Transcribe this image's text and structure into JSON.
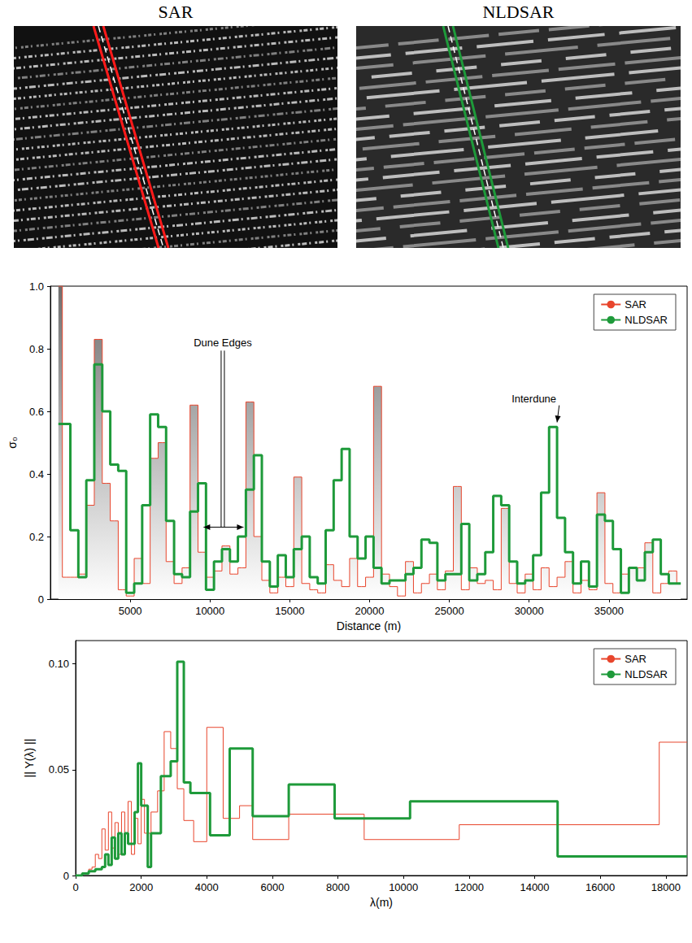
{
  "image_panels": [
    {
      "title": "SAR",
      "color": "#ff1a1a"
    },
    {
      "title": "NLDSAR",
      "color": "#1e9a3a"
    }
  ],
  "chart_data": [
    {
      "type": "line",
      "line_style": "step",
      "xlabel": "Distance (m)",
      "ylabel": "σ₀",
      "xlim": [
        0,
        39900
      ],
      "ylim": [
        0,
        1
      ],
      "xticks": [
        5000,
        10000,
        15000,
        20000,
        25000,
        30000,
        35000
      ],
      "yticks": [
        0,
        0.2,
        0.4,
        0.6,
        0.8,
        {
          "value": 1,
          "label": "1.0"
        }
      ],
      "grid": false,
      "legend": "upper right",
      "x": [
        500,
        1000,
        1500,
        2000,
        2500,
        3000,
        3500,
        4000,
        4500,
        5000,
        5500,
        6000,
        6500,
        7000,
        7500,
        8000,
        8500,
        9000,
        9500,
        10000,
        10500,
        11000,
        11500,
        12000,
        12500,
        13000,
        13500,
        14000,
        14500,
        15000,
        15500,
        16000,
        16500,
        17000,
        17500,
        18000,
        18500,
        19000,
        19500,
        20000,
        20500,
        21000,
        21500,
        22000,
        22500,
        23000,
        23500,
        24000,
        24500,
        25000,
        25500,
        26000,
        26500,
        27000,
        27500,
        28000,
        28500,
        29000,
        29500,
        30000,
        30500,
        31000,
        31500,
        32000,
        32500,
        33000,
        33500,
        34000,
        34500,
        35000,
        35500,
        36000,
        36500,
        37000,
        37500,
        38000,
        38500,
        39000,
        39500
      ],
      "series": [
        {
          "name": "SAR",
          "type": "area",
          "color": "#e8452c",
          "values": [
            1.0,
            0.07,
            0.07,
            0.08,
            0.3,
            0.83,
            0.37,
            0.25,
            0.03,
            0.01,
            0.13,
            0.05,
            0.45,
            0.5,
            0.12,
            0.05,
            0.1,
            0.62,
            0.15,
            0.07,
            0.09,
            0.17,
            0.08,
            0.1,
            0.63,
            0.2,
            0.06,
            0.02,
            0.07,
            0.04,
            0.39,
            0.05,
            0.03,
            0.02,
            0.11,
            0.06,
            0.04,
            0.13,
            0.04,
            0.07,
            0.68,
            0.08,
            0.04,
            0.01,
            0.12,
            0.02,
            0.05,
            0.08,
            0.03,
            0.09,
            0.36,
            0.03,
            0.1,
            0.05,
            0.06,
            0.03,
            0.29,
            0.05,
            0.02,
            0.08,
            0.03,
            0.1,
            0.04,
            0.07,
            0.12,
            0.02,
            0.06,
            0.03,
            0.34,
            0.05,
            0.02,
            0.08,
            0.1,
            0.1,
            0.18,
            0.02,
            0.05,
            0.09,
            0.05
          ]
        },
        {
          "name": "NLDSAR",
          "type": "line",
          "color": "#1e9a3a",
          "values": [
            0.56,
            0.56,
            0.22,
            0.07,
            0.38,
            0.75,
            0.6,
            0.43,
            0.41,
            0.02,
            0.05,
            0.3,
            0.59,
            0.55,
            0.25,
            0.08,
            0.07,
            0.28,
            0.37,
            0.03,
            0.12,
            0.16,
            0.12,
            0.2,
            0.35,
            0.46,
            0.12,
            0.04,
            0.14,
            0.07,
            0.16,
            0.2,
            0.07,
            0.05,
            0.22,
            0.38,
            0.48,
            0.2,
            0.13,
            0.2,
            0.1,
            0.05,
            0.06,
            0.06,
            0.08,
            0.1,
            0.19,
            0.18,
            0.06,
            0.08,
            0.08,
            0.24,
            0.06,
            0.08,
            0.15,
            0.33,
            0.3,
            0.12,
            0.05,
            0.06,
            0.14,
            0.34,
            0.55,
            0.26,
            0.15,
            0.05,
            0.12,
            0.04,
            0.27,
            0.25,
            0.16,
            0.02,
            0.1,
            0.06,
            0.15,
            0.19,
            0.08,
            0.05,
            0.05
          ]
        }
      ],
      "annotations": [
        {
          "text": "Dune Edges",
          "text_at": [
            10800,
            0.82
          ],
          "arrow": [
            [
              9600,
              0.23
            ],
            [
              12100,
              0.23
            ]
          ]
        },
        {
          "text": "Interdune",
          "text_at": [
            30300,
            0.64
          ],
          "arrow": [
            [
              31750,
              0.565
            ]
          ]
        }
      ]
    },
    {
      "type": "line",
      "line_style": "step",
      "xlabel": "λ(m)",
      "ylabel": "|| Y(λ) ||",
      "xlim": [
        0,
        18650
      ],
      "ylim": [
        0,
        0.111
      ],
      "xticks": [
        0,
        2000,
        4000,
        6000,
        8000,
        10000,
        12000,
        14000,
        16000,
        18000
      ],
      "yticks": [
        0,
        0.05,
        {
          "value": 0.1,
          "label": "0.10"
        }
      ],
      "grid": false,
      "legend": "upper right",
      "series": [
        {
          "name": "SAR",
          "type": "line",
          "color": "#e8452c",
          "x": [
            0,
            200,
            400,
            500,
            600,
            700,
            800,
            900,
            1000,
            1100,
            1200,
            1300,
            1400,
            1500,
            1600,
            1700,
            1800,
            1900,
            2000,
            2100,
            2300,
            2500,
            2700,
            2900,
            3100,
            3300,
            3600,
            4000,
            4500,
            5000,
            5400,
            6500,
            8800,
            11700,
            17800,
            18650
          ],
          "values": [
            0,
            0.001,
            0.003,
            0.004,
            0.01,
            0.008,
            0.022,
            0.012,
            0.03,
            0.013,
            0.025,
            0.01,
            0.03,
            0.02,
            0.035,
            0.01,
            0.027,
            0.015,
            0.036,
            0.02,
            0.03,
            0.04,
            0.068,
            0.06,
            0.041,
            0.026,
            0.016,
            0.07,
            0.027,
            0.033,
            0.017,
            0.029,
            0.017,
            0.024,
            0.063,
            0.063
          ]
        },
        {
          "name": "NLDSAR",
          "type": "line",
          "color": "#1e9a3a",
          "x": [
            0,
            200,
            400,
            600,
            800,
            900,
            1000,
            1100,
            1200,
            1300,
            1400,
            1500,
            1600,
            1800,
            1900,
            2000,
            2200,
            2300,
            2600,
            2900,
            3100,
            3300,
            3500,
            4100,
            4700,
            5400,
            6500,
            7900,
            10200,
            14700,
            18650
          ],
          "values": [
            0,
            0.001,
            0.002,
            0.003,
            0.004,
            0.01,
            0.005,
            0.018,
            0.008,
            0.02,
            0.01,
            0.02,
            0.015,
            0.03,
            0.053,
            0.033,
            0.004,
            0.02,
            0.047,
            0.054,
            0.101,
            0.044,
            0.039,
            0.019,
            0.06,
            0.028,
            0.043,
            0.027,
            0.035,
            0.009,
            0.009
          ]
        }
      ]
    }
  ]
}
